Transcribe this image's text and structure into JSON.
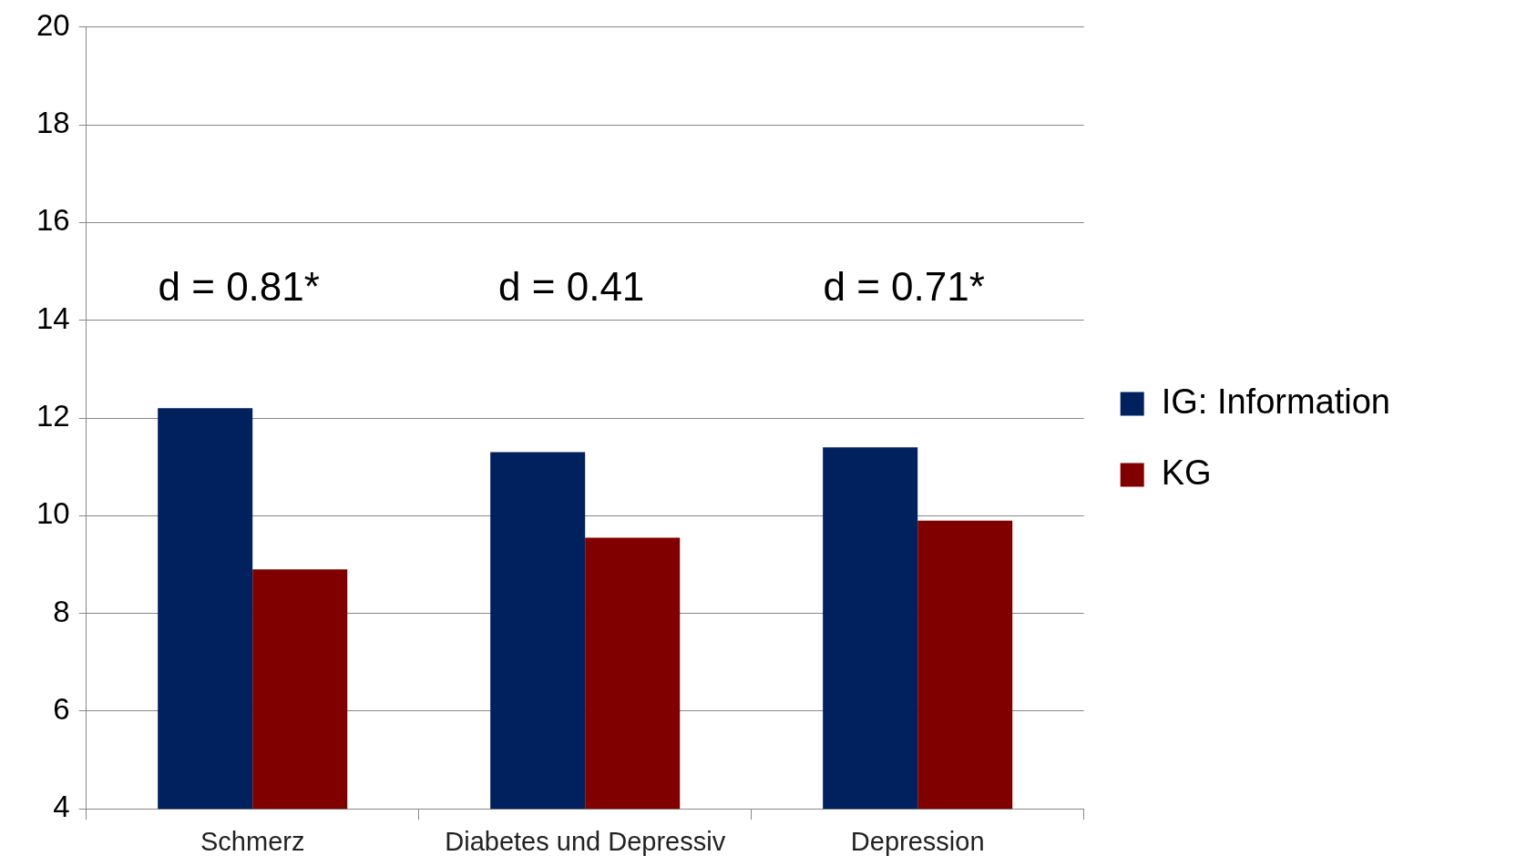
{
  "chart_data": {
    "type": "bar",
    "categories": [
      "Schmerz",
      "Diabetes und Depressiv",
      "Depression"
    ],
    "series": [
      {
        "name": "IG: Information",
        "color": "#00215e",
        "values": [
          12.2,
          11.3,
          11.4
        ]
      },
      {
        "name": "KG",
        "color": "#800000",
        "values": [
          8.9,
          9.55,
          9.9
        ]
      }
    ],
    "ylim": [
      4,
      20
    ],
    "yticks": [
      4,
      6,
      8,
      10,
      12,
      14,
      16,
      18,
      20
    ],
    "grid": "y",
    "legend": "right",
    "annotations": [
      "d = 0.81*",
      "d = 0.41",
      "d = 0.71*"
    ]
  }
}
